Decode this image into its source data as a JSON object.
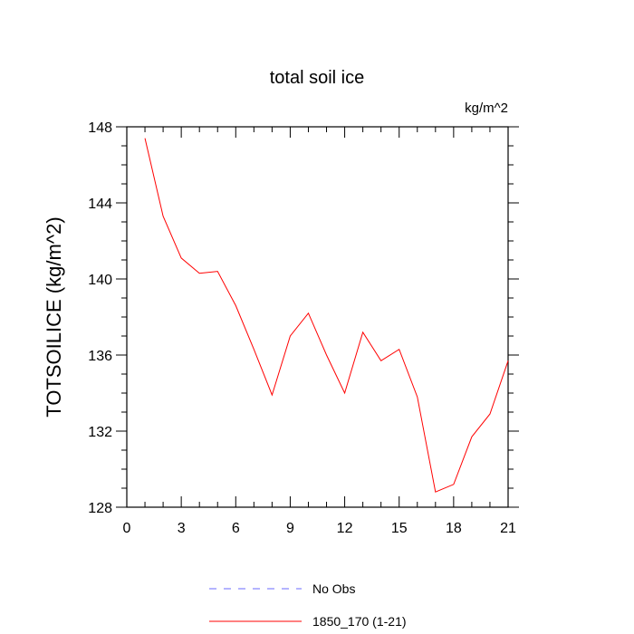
{
  "chart_data": {
    "type": "line",
    "title": "total soil ice",
    "units": "kg/m^2",
    "xlabel": "",
    "ylabel": "TOTSOILICE  (kg/m^2)",
    "xlim": [
      0,
      21
    ],
    "ylim": [
      128,
      148
    ],
    "x_ticks": [
      0,
      3,
      6,
      9,
      12,
      15,
      18,
      21
    ],
    "y_ticks": [
      128,
      132,
      136,
      140,
      144,
      148
    ],
    "grid": false,
    "legend_position": "bottom",
    "series": [
      {
        "name": "No Obs",
        "color": "#6a6aff",
        "style": "dashed",
        "x": [],
        "values": []
      },
      {
        "name": "1850_170 (1-21)",
        "color": "#ff0000",
        "style": "solid",
        "x": [
          1,
          2,
          3,
          4,
          5,
          6,
          7,
          8,
          9,
          10,
          11,
          12,
          13,
          14,
          15,
          16,
          17,
          18,
          19,
          20,
          21
        ],
        "values": [
          147.4,
          143.3,
          141.1,
          140.3,
          140.4,
          138.6,
          136.3,
          133.9,
          137.0,
          138.2,
          136.0,
          134.0,
          137.2,
          135.7,
          136.3,
          133.8,
          128.8,
          129.2,
          131.7,
          132.9,
          135.7
        ]
      }
    ]
  }
}
